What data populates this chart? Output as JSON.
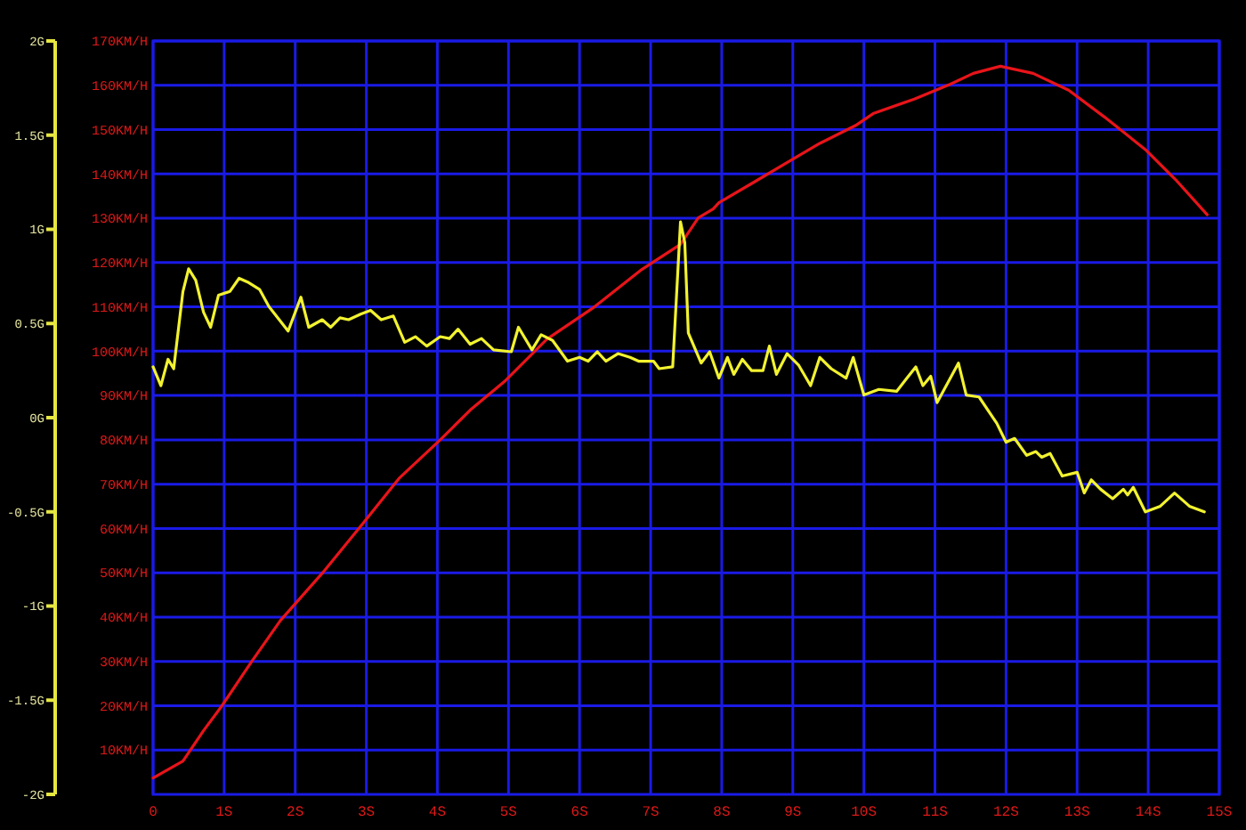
{
  "chart_data": {
    "type": "line",
    "xlim": [
      0,
      15
    ],
    "xticks": [
      0,
      {
        "value": 1,
        "label": "1S"
      },
      {
        "value": 2,
        "label": "2S"
      },
      {
        "value": 3,
        "label": "3S"
      },
      {
        "value": 4,
        "label": "4S"
      },
      {
        "value": 5,
        "label": "5S"
      },
      {
        "value": 6,
        "label": "6S"
      },
      {
        "value": 7,
        "label": "7S"
      },
      {
        "value": 8,
        "label": "8S"
      },
      {
        "value": 9,
        "label": "9S"
      },
      {
        "value": 10,
        "label": "10S"
      },
      {
        "value": 11,
        "label": "11S"
      },
      {
        "value": 12,
        "label": "12S"
      },
      {
        "value": 13,
        "label": "13S"
      },
      {
        "value": 14,
        "label": "14S"
      },
      {
        "value": 15,
        "label": "15S"
      }
    ],
    "ylim": [
      0,
      170
    ],
    "yticks": [
      {
        "value": 10,
        "label": "10KM/H"
      },
      {
        "value": 20,
        "label": "20KM/H"
      },
      {
        "value": 30,
        "label": "30KM/H"
      },
      {
        "value": 40,
        "label": "40KM/H"
      },
      {
        "value": 50,
        "label": "50KM/H"
      },
      {
        "value": 60,
        "label": "60KM/H"
      },
      {
        "value": 70,
        "label": "70KM/H"
      },
      {
        "value": 80,
        "label": "80KM/H"
      },
      {
        "value": 90,
        "label": "90KM/H"
      },
      {
        "value": 100,
        "label": "100KM/H"
      },
      {
        "value": 110,
        "label": "110KM/H"
      },
      {
        "value": 120,
        "label": "120KM/H"
      },
      {
        "value": 130,
        "label": "130KM/H"
      },
      {
        "value": 140,
        "label": "140KM/H"
      },
      {
        "value": 150,
        "label": "150KM/H"
      },
      {
        "value": 160,
        "label": "160KM/H"
      },
      {
        "value": 170,
        "label": "170KM/H"
      }
    ],
    "y2lim": [
      -2,
      2
    ],
    "y2ticks": [
      {
        "value": -2,
        "label": "-2G"
      },
      {
        "value": -1.5,
        "label": "-1.5G"
      },
      {
        "value": -1,
        "label": "-1G"
      },
      {
        "value": -0.5,
        "label": "-0.5G"
      },
      {
        "value": 0,
        "label": "0G"
      },
      {
        "value": 0.5,
        "label": "0.5G"
      },
      {
        "value": 1,
        "label": "1G"
      },
      {
        "value": 1.5,
        "label": "1.5G"
      },
      {
        "value": 2,
        "label": "2G"
      }
    ],
    "grid": true,
    "line_style": "solid",
    "marker": "none",
    "series": [
      {
        "color": "#e8141a",
        "x": [
          0,
          0.42,
          0.71,
          0.96,
          1.38,
          1.79,
          2.38,
          2.96,
          3.46,
          4.04,
          4.46,
          4.96,
          5.54,
          6.21,
          6.88,
          7.42,
          7.67,
          7.88,
          7.96,
          8.46,
          8.88,
          9.38,
          9.88,
          10.13,
          10.71,
          11.21,
          11.54,
          11.92,
          12.38,
          12.88,
          13.38,
          13.96,
          14.38,
          14.83
        ],
        "values": [
          3.7,
          7.5,
          14.4,
          19.8,
          29.8,
          39.2,
          49.9,
          61.3,
          71.3,
          80,
          86.7,
          93.4,
          102.7,
          110,
          118.5,
          124.1,
          130.1,
          132.1,
          133.5,
          138.2,
          142.2,
          146.9,
          150.9,
          153.6,
          156.9,
          160.2,
          162.7,
          164.3,
          162.7,
          158.9,
          152.9,
          145.5,
          138.8,
          130.8
        ]
      },
      {
        "color": "#f2f230",
        "axis": "y2",
        "x": [
          0,
          0.11,
          0.21,
          0.29,
          0.42,
          0.5,
          0.6,
          0.71,
          0.81,
          0.92,
          1.08,
          1.21,
          1.33,
          1.5,
          1.63,
          1.9,
          2.08,
          2.19,
          2.38,
          2.5,
          2.63,
          2.75,
          2.92,
          3.06,
          3.21,
          3.38,
          3.54,
          3.69,
          3.85,
          4.04,
          4.17,
          4.29,
          4.46,
          4.62,
          4.79,
          5.04,
          5.14,
          5.33,
          5.46,
          5.62,
          5.83,
          6,
          6.12,
          6.25,
          6.37,
          6.54,
          6.71,
          6.83,
          7.04,
          7.12,
          7.31,
          7.42,
          7.48,
          7.53,
          7.71,
          7.83,
          7.96,
          8.08,
          8.17,
          8.29,
          8.42,
          8.58,
          8.67,
          8.77,
          8.92,
          9.08,
          9.25,
          9.38,
          9.54,
          9.75,
          9.85,
          10,
          10.21,
          10.46,
          10.73,
          10.83,
          10.94,
          11.03,
          11.33,
          11.44,
          11.62,
          11.87,
          12,
          12.12,
          12.29,
          12.42,
          12.5,
          12.62,
          12.79,
          13,
          13.1,
          13.2,
          13.33,
          13.5,
          13.65,
          13.71,
          13.79,
          13.96,
          14.17,
          14.37,
          14.58,
          14.79
        ],
        "values": [
          0.27,
          0.17,
          0.31,
          0.26,
          0.67,
          0.79,
          0.73,
          0.56,
          0.48,
          0.65,
          0.67,
          0.74,
          0.72,
          0.68,
          0.59,
          0.46,
          0.64,
          0.48,
          0.52,
          0.48,
          0.53,
          0.52,
          0.55,
          0.57,
          0.52,
          0.54,
          0.4,
          0.43,
          0.38,
          0.43,
          0.42,
          0.47,
          0.39,
          0.42,
          0.36,
          0.35,
          0.48,
          0.36,
          0.44,
          0.41,
          0.3,
          0.32,
          0.3,
          0.35,
          0.3,
          0.34,
          0.32,
          0.3,
          0.3,
          0.26,
          0.27,
          1.04,
          0.93,
          0.45,
          0.29,
          0.35,
          0.21,
          0.32,
          0.23,
          0.31,
          0.25,
          0.25,
          0.38,
          0.23,
          0.34,
          0.28,
          0.17,
          0.32,
          0.26,
          0.21,
          0.32,
          0.12,
          0.15,
          0.14,
          0.27,
          0.17,
          0.22,
          0.08,
          0.29,
          0.12,
          0.11,
          -0.03,
          -0.13,
          -0.11,
          -0.2,
          -0.18,
          -0.21,
          -0.19,
          -0.31,
          -0.29,
          -0.4,
          -0.33,
          -0.38,
          -0.43,
          -0.38,
          -0.41,
          -0.37,
          -0.5,
          -0.47,
          -0.4,
          -0.47,
          -0.5
        ]
      }
    ]
  }
}
